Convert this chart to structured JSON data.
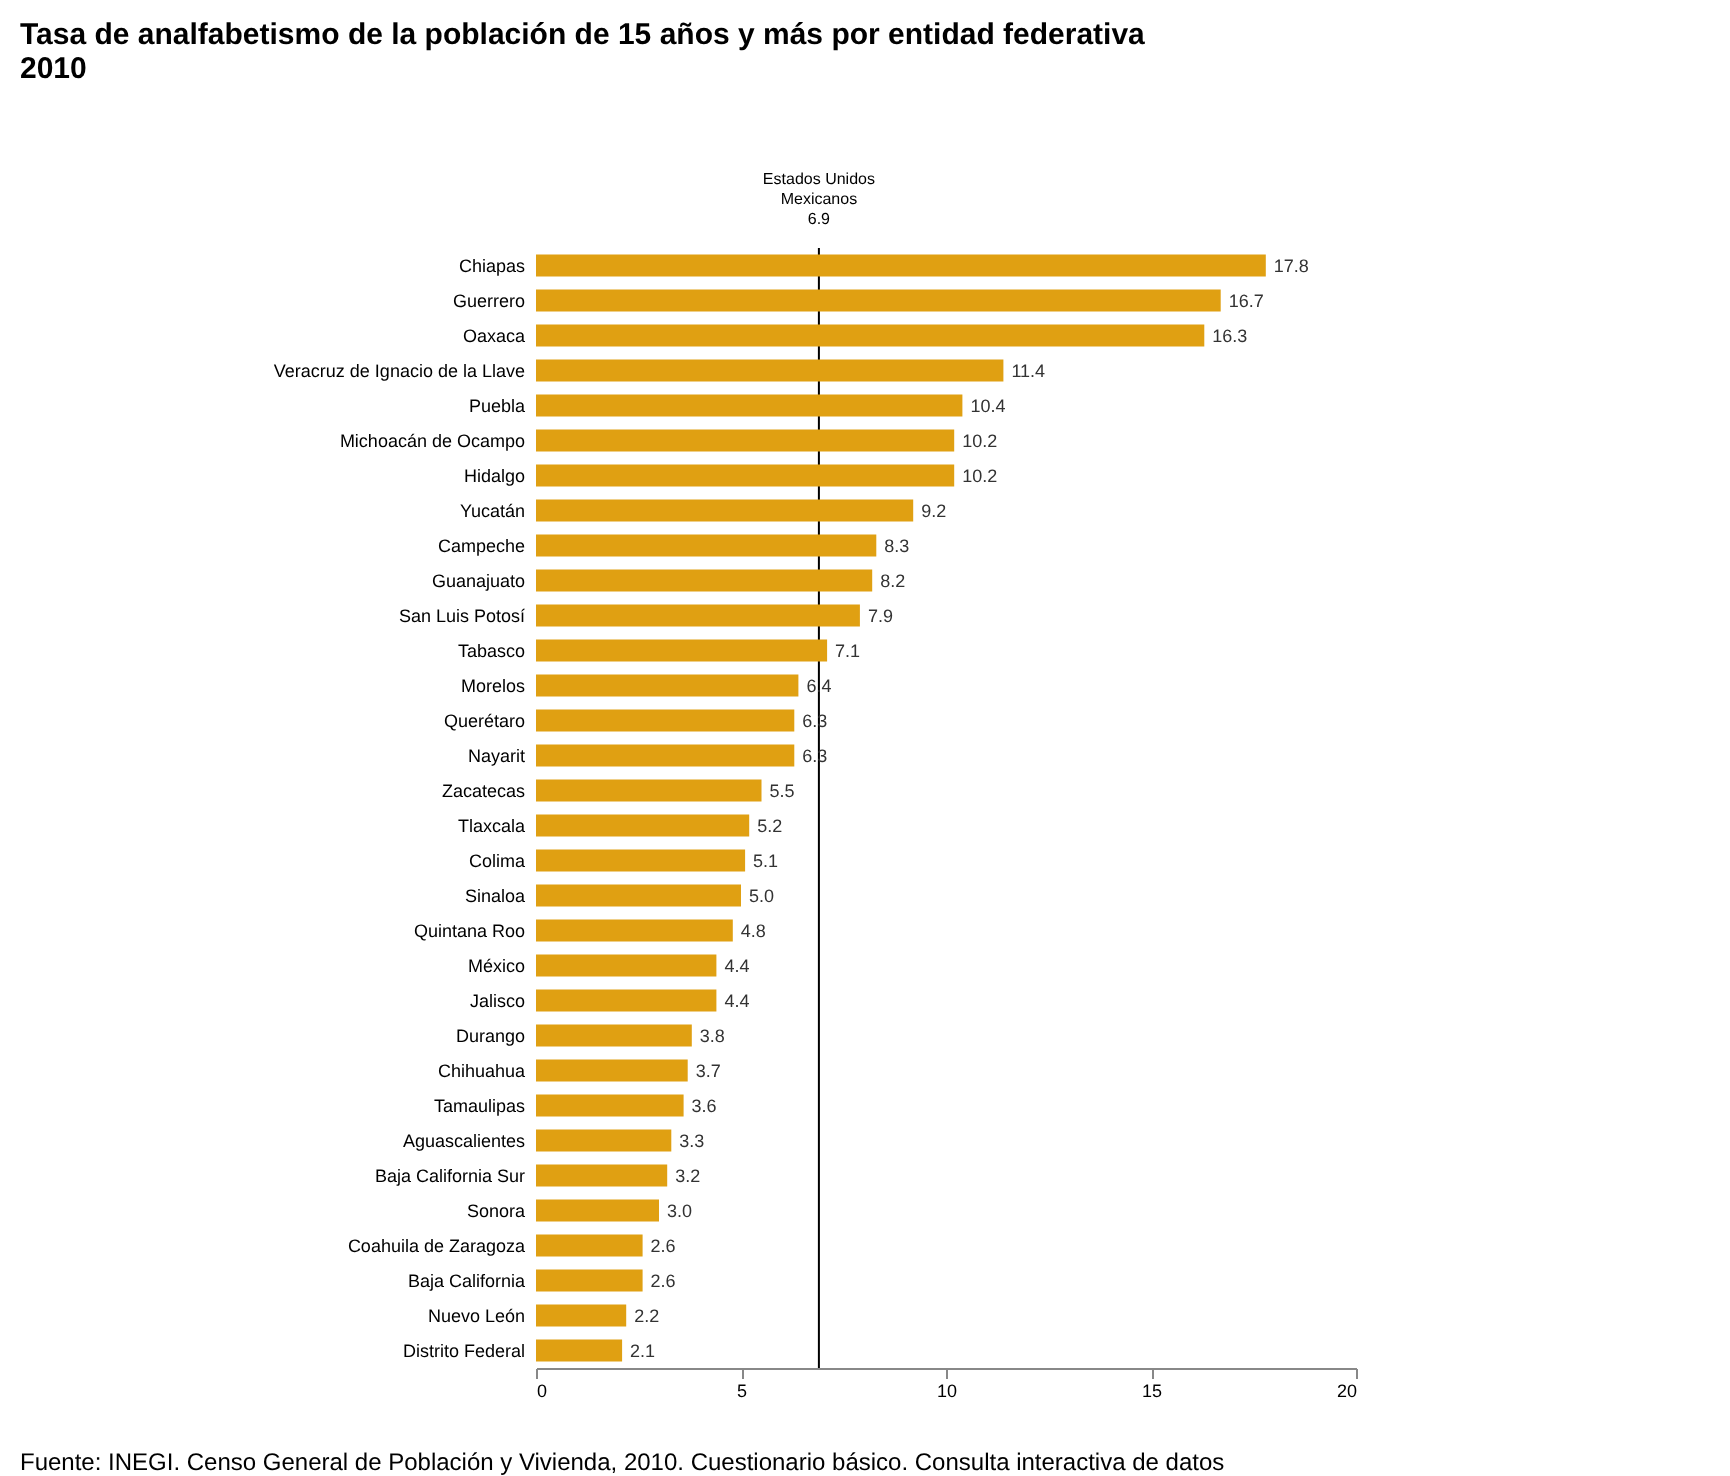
{
  "chart_data": {
    "type": "bar",
    "orientation": "horizontal",
    "title": "Tasa de analfabetismo de la población de 15 años y más por entidad federativa\n2010",
    "categories": [
      "Chiapas",
      "Guerrero",
      "Oaxaca",
      "Veracruz de Ignacio de la Llave",
      "Puebla",
      "Michoacán de Ocampo",
      "Hidalgo",
      "Yucatán",
      "Campeche",
      "Guanajuato",
      "San Luis Potosí",
      "Tabasco",
      "Morelos",
      "Querétaro",
      "Nayarit",
      "Zacatecas",
      "Tlaxcala",
      "Colima",
      "Sinaloa",
      "Quintana Roo",
      "México",
      "Jalisco",
      "Durango",
      "Chihuahua",
      "Tamaulipas",
      "Aguascalientes",
      "Baja California Sur",
      "Sonora",
      "Coahuila de Zaragoza",
      "Baja California",
      "Nuevo León",
      "Distrito Federal"
    ],
    "values": [
      17.8,
      16.7,
      16.3,
      11.4,
      10.4,
      10.2,
      10.2,
      9.2,
      8.3,
      8.2,
      7.9,
      7.1,
      6.4,
      6.3,
      6.3,
      5.5,
      5.2,
      5.1,
      5.0,
      4.8,
      4.4,
      4.4,
      3.8,
      3.7,
      3.6,
      3.3,
      3.2,
      3.0,
      2.6,
      2.6,
      2.2,
      2.1
    ],
    "value_labels": [
      "17.8",
      "16.7",
      "16.3",
      "11.4",
      "10.4",
      "10.2",
      "10.2",
      "9.2",
      "8.3",
      "8.2",
      "7.9",
      "7.1",
      "6.4",
      "6.3",
      "6.3",
      "5.5",
      "5.2",
      "5.1",
      "5.0",
      "4.8",
      "4.4",
      "4.4",
      "3.8",
      "3.7",
      "3.6",
      "3.3",
      "3.2",
      "3.0",
      "2.6",
      "2.6",
      "2.2",
      "2.1"
    ],
    "color": "#e0a012",
    "xlim": [
      0,
      20
    ],
    "xticks": [
      0,
      5,
      10,
      15,
      20
    ],
    "grid": false,
    "ref_lines": [
      {
        "axis": "x",
        "value": 6.9,
        "label": "Estados Unidos\nMexicanos\n6.9",
        "color": "#000000"
      }
    ],
    "annotations": [
      "Fuente: INEGI. Censo General de Población y Vivienda, 2010. Cuestionario básico. Consulta interactiva de datos"
    ]
  }
}
